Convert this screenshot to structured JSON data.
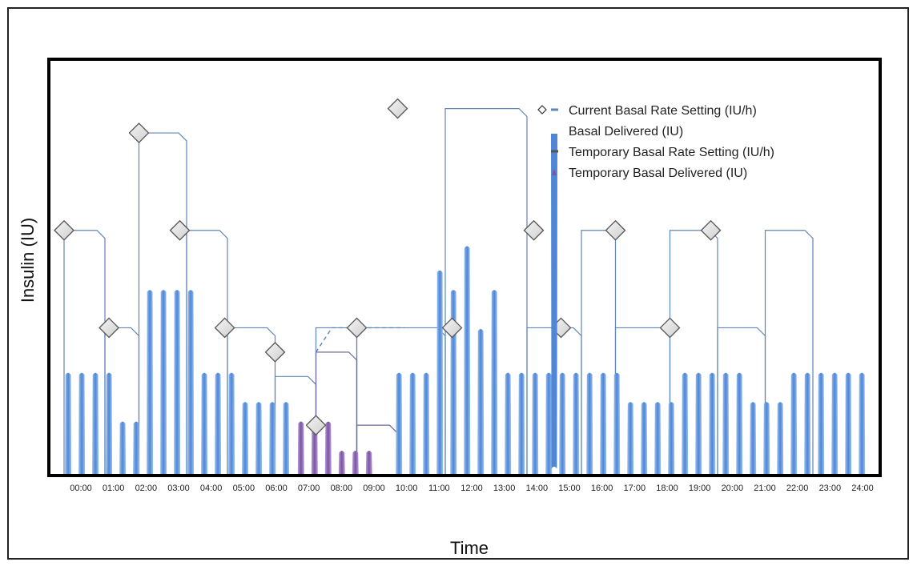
{
  "chart_data": {
    "type": "bar",
    "xlabel": "Time",
    "ylabel": "Insulin (IU)",
    "x_ticks": [
      "00:00",
      "01:00",
      "02:00",
      "03:00",
      "04:00",
      "05:00",
      "06:00",
      "07:00",
      "08:00",
      "09:00",
      "10:00",
      "11:00",
      "12:00",
      "13:00",
      "14:00",
      "15:00",
      "16:00",
      "17:00",
      "18:00",
      "19:00",
      "20:00",
      "21:00",
      "22:00",
      "23:00",
      "24:00"
    ],
    "legend": [
      {
        "label": "Current Basal Rate Setting (IU/h)",
        "marker": "diamond-dash"
      },
      {
        "label": "Basal Delivered (IU)",
        "marker": "blue-bar"
      },
      {
        "label": "Temporary Basal Rate Setting (IU/h)",
        "marker": "dash"
      },
      {
        "label": "Temporary Basal Delivered (IU)",
        "marker": "purple-bar"
      }
    ],
    "legend_position": "top-right",
    "colors": {
      "basal_bar": "#4f86d6",
      "basal_bar_light": "#9cc1ef",
      "temp_bar": "#7a55a3",
      "temp_bar_light": "#b79bd6",
      "rate_line": "#5f86b8",
      "diamond_fill": "#cfcfcf",
      "diamond_stroke": "#555555"
    },
    "basal_rate_segments": [
      {
        "start": 0.0,
        "end": 3.0,
        "value": 1.0
      },
      {
        "start": 3.0,
        "end": 5.5,
        "value": 0.6
      },
      {
        "start": 5.5,
        "end": 9.0,
        "value": 1.4
      },
      {
        "start": 9.0,
        "end": 12.0,
        "value": 1.0
      },
      {
        "start": 12.0,
        "end": 15.5,
        "value": 0.6
      },
      {
        "start": 15.5,
        "end": 18.5,
        "value": 0.4
      },
      {
        "start": 18.5,
        "end": 21.5,
        "value": 0.6
      },
      {
        "start": 21.5,
        "end": 28.0,
        "value": 0.6
      },
      {
        "start": 28.0,
        "end": 34.0,
        "value": 1.5
      },
      {
        "start": 34.0,
        "end": 38.0,
        "value": 0.6
      },
      {
        "start": 38.0,
        "end": 40.5,
        "value": 1.0
      },
      {
        "start": 40.5,
        "end": 44.5,
        "value": 0.6
      },
      {
        "start": 44.5,
        "end": 48.0,
        "value": 1.0
      },
      {
        "start": 48.0,
        "end": 51.5,
        "value": 0.6
      },
      {
        "start": 51.5,
        "end": 55.0,
        "value": 1.0
      }
    ],
    "temp_rate_segments": [
      {
        "start": 18.5,
        "end": 21.5,
        "value": 0.5
      },
      {
        "start": 21.5,
        "end": 24.5,
        "value": 0.2
      }
    ],
    "temp_rate_dashed": {
      "start": 18.5,
      "end": 25.0,
      "value": 0.6
    },
    "basal_delivered": [
      {
        "x": 0.3,
        "value": 0.42
      },
      {
        "x": 1.3,
        "value": 0.42
      },
      {
        "x": 2.3,
        "value": 0.42
      },
      {
        "x": 3.3,
        "value": 0.42
      },
      {
        "x": 4.3,
        "value": 0.22
      },
      {
        "x": 5.3,
        "value": 0.22
      },
      {
        "x": 6.3,
        "value": 0.76
      },
      {
        "x": 7.3,
        "value": 0.76
      },
      {
        "x": 8.3,
        "value": 0.76
      },
      {
        "x": 9.3,
        "value": 0.76
      },
      {
        "x": 10.3,
        "value": 0.42
      },
      {
        "x": 11.3,
        "value": 0.42
      },
      {
        "x": 12.3,
        "value": 0.42
      },
      {
        "x": 13.3,
        "value": 0.3
      },
      {
        "x": 14.3,
        "value": 0.3
      },
      {
        "x": 15.3,
        "value": 0.3
      },
      {
        "x": 16.3,
        "value": 0.3
      },
      {
        "x": 24.6,
        "value": 0.42
      },
      {
        "x": 25.6,
        "value": 0.42
      },
      {
        "x": 26.6,
        "value": 0.42
      },
      {
        "x": 27.6,
        "value": 0.84
      },
      {
        "x": 28.6,
        "value": 0.76
      },
      {
        "x": 29.6,
        "value": 0.94
      },
      {
        "x": 30.6,
        "value": 0.6
      },
      {
        "x": 31.6,
        "value": 0.76
      },
      {
        "x": 32.6,
        "value": 0.42
      },
      {
        "x": 33.6,
        "value": 0.42
      },
      {
        "x": 34.6,
        "value": 0.42
      },
      {
        "x": 35.6,
        "value": 0.42
      },
      {
        "x": 36.6,
        "value": 0.42
      },
      {
        "x": 37.6,
        "value": 0.42
      },
      {
        "x": 38.6,
        "value": 0.42
      },
      {
        "x": 39.6,
        "value": 0.42
      },
      {
        "x": 40.6,
        "value": 0.42
      },
      {
        "x": 41.6,
        "value": 0.3
      },
      {
        "x": 42.6,
        "value": 0.3
      },
      {
        "x": 43.6,
        "value": 0.3
      },
      {
        "x": 44.6,
        "value": 0.3
      },
      {
        "x": 45.6,
        "value": 0.42
      },
      {
        "x": 46.6,
        "value": 0.42
      },
      {
        "x": 47.6,
        "value": 0.42
      },
      {
        "x": 48.6,
        "value": 0.42
      },
      {
        "x": 49.6,
        "value": 0.42
      },
      {
        "x": 50.6,
        "value": 0.3
      },
      {
        "x": 51.6,
        "value": 0.3
      },
      {
        "x": 52.6,
        "value": 0.3
      },
      {
        "x": 53.6,
        "value": 0.42
      },
      {
        "x": 54.6,
        "value": 0.42
      },
      {
        "x": 55.6,
        "value": 0.42
      },
      {
        "x": 56.6,
        "value": 0.42
      },
      {
        "x": 57.6,
        "value": 0.42
      },
      {
        "x": 58.6,
        "value": 0.42
      }
    ],
    "temp_delivered": [
      {
        "x": 17.4,
        "value": 0.22
      },
      {
        "x": 18.4,
        "value": 0.22
      },
      {
        "x": 19.4,
        "value": 0.22
      },
      {
        "x": 20.4,
        "value": 0.1
      },
      {
        "x": 21.4,
        "value": 0.1
      },
      {
        "x": 22.4,
        "value": 0.1
      }
    ],
    "diamonds": [
      {
        "x": 0.0,
        "value": 1.0
      },
      {
        "x": 3.3,
        "value": 0.6
      },
      {
        "x": 5.5,
        "value": 1.4
      },
      {
        "x": 8.5,
        "value": 1.0
      },
      {
        "x": 11.8,
        "value": 0.6
      },
      {
        "x": 15.5,
        "value": 0.5
      },
      {
        "x": 18.5,
        "value": 0.2
      },
      {
        "x": 21.5,
        "value": 0.6
      },
      {
        "x": 24.5,
        "value": 1.5
      },
      {
        "x": 28.5,
        "value": 0.6
      },
      {
        "x": 34.5,
        "value": 1.0
      },
      {
        "x": 36.5,
        "value": 0.6
      },
      {
        "x": 40.5,
        "value": 1.0
      },
      {
        "x": 44.5,
        "value": 0.6
      },
      {
        "x": 47.5,
        "value": 1.0
      }
    ]
  }
}
